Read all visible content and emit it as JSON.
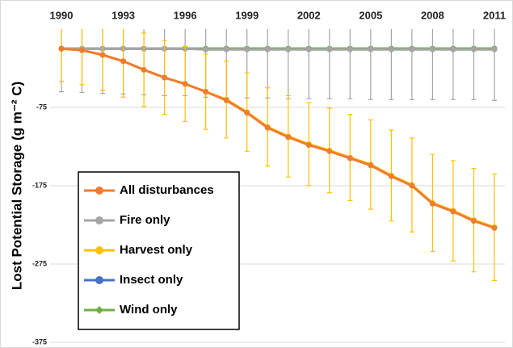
{
  "chart_data": {
    "type": "line",
    "y_label": "Lost Potential Storage (g m⁻² C)",
    "x": [
      1990,
      1991,
      1992,
      1993,
      1994,
      1995,
      1996,
      1997,
      1998,
      1999,
      2000,
      2001,
      2002,
      2003,
      2004,
      2005,
      2006,
      2007,
      2008,
      2009,
      2010,
      2011
    ],
    "xlim": [
      1990,
      2011
    ],
    "xticks": [
      1990,
      1993,
      1996,
      1999,
      2002,
      2005,
      2008,
      2011
    ],
    "ylim": [
      -375,
      25
    ],
    "yticks": [
      -375,
      -275,
      -175,
      -75
    ],
    "grid": true,
    "legend": "lower-left",
    "series": [
      {
        "name": "Insect only",
        "color": "#4472c4",
        "values": [
          0,
          0,
          0,
          0,
          0,
          0,
          0,
          0,
          0,
          0,
          0,
          0,
          0,
          0,
          0,
          0,
          0,
          0,
          0,
          0,
          0,
          0
        ]
      },
      {
        "name": "Wind only",
        "color": "#70ad47",
        "values": [
          0,
          0,
          0,
          0,
          0,
          0,
          0,
          0,
          0,
          0,
          0,
          0,
          0,
          0,
          0,
          0,
          0,
          0,
          0,
          0,
          0,
          0
        ]
      },
      {
        "name": "Fire only",
        "color": "#a5a5a5",
        "values": [
          0,
          0,
          0,
          0,
          0,
          0,
          0,
          -1,
          -1,
          -1,
          -1,
          -1,
          -1,
          -1,
          -1,
          -1,
          -1,
          -1,
          -1,
          -1,
          -1,
          -1
        ],
        "errors": [
          55,
          56,
          57,
          58,
          59,
          60,
          60,
          61,
          62,
          62,
          62,
          63,
          63,
          63,
          63,
          64,
          64,
          64,
          64,
          64,
          64,
          65
        ]
      },
      {
        "name": "Harvest only",
        "color": "#ffc000",
        "values": [
          0,
          -2,
          -8,
          -16,
          -27,
          -37,
          -45,
          -55,
          -65,
          -81,
          -100,
          -112,
          -122,
          -130,
          -139,
          -148,
          -162,
          -174,
          -197,
          -207,
          -219,
          -228
        ],
        "errors": [
          42,
          44,
          45,
          46,
          47,
          47,
          48,
          48,
          49,
          50,
          50,
          52,
          53,
          54,
          55,
          57,
          58,
          60,
          62,
          64,
          66,
          68
        ]
      },
      {
        "name": "All disturbances",
        "color": "#ed7d31",
        "values": [
          0,
          -2,
          -8,
          -16,
          -27,
          -37,
          -45,
          -55,
          -66,
          -82,
          -101,
          -113,
          -123,
          -131,
          -140,
          -149,
          -163,
          -175,
          -198,
          -208,
          -220,
          -229
        ]
      }
    ]
  }
}
